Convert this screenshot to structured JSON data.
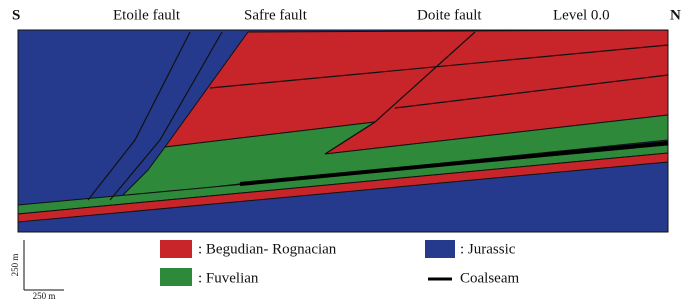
{
  "header": {
    "left": "S",
    "right": "N",
    "labels": [
      "Etoile fault",
      "Safre fault",
      "Doite fault",
      "Level 0.0"
    ]
  },
  "legend": [
    {
      "label": ": Begudian- Rognacian"
    },
    {
      "label": ": Jurassic"
    },
    {
      "label": ": Fuvelian"
    },
    {
      "label": "Coalseam"
    }
  ],
  "scale": {
    "vertical": "250 m",
    "horizontal": "250 m"
  }
}
